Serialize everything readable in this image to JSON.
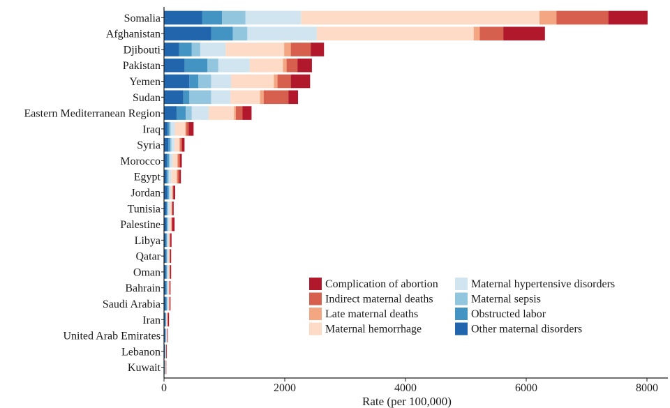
{
  "chart_data": {
    "type": "bar",
    "orientation": "horizontal",
    "stacked": true,
    "xlabel": "Rate (per 100,000)",
    "xlim": [
      0,
      8000
    ],
    "xticks": [
      0,
      2000,
      4000,
      6000,
      8000
    ],
    "legend_placement": "bottom-right",
    "categories": [
      "Somalia",
      "Afghanistan",
      "Djibouti",
      "Pakistan",
      "Yemen",
      "Sudan",
      "Eastern Mediterranean Region",
      "Iraq",
      "Syria",
      "Morocco",
      "Egypt",
      "Jordan",
      "Tunisia",
      "Palestine",
      "Libya",
      "Qatar",
      "Oman",
      "Bahrain",
      "Saudi Arabia",
      "Iran",
      "United Arab Emirates",
      "Lebanon",
      "Kuwait"
    ],
    "series": [
      {
        "name": "Other maternal disorders",
        "color": "#2166ac",
        "values": [
          630,
          780,
          250,
          340,
          420,
          320,
          210,
          60,
          70,
          50,
          40,
          55,
          40,
          40,
          30,
          30,
          30,
          30,
          30,
          20,
          20,
          15,
          10
        ]
      },
      {
        "name": "Obstructed labor",
        "color": "#4393c3",
        "values": [
          330,
          360,
          210,
          380,
          150,
          100,
          150,
          30,
          30,
          30,
          20,
          20,
          15,
          15,
          15,
          15,
          15,
          15,
          15,
          10,
          8,
          5,
          5
        ]
      },
      {
        "name": "Maternal sepsis",
        "color": "#92c5de",
        "values": [
          390,
          240,
          140,
          180,
          210,
          360,
          100,
          20,
          25,
          20,
          20,
          15,
          10,
          10,
          10,
          10,
          10,
          10,
          10,
          5,
          5,
          3,
          3
        ]
      },
      {
        "name": "Maternal hypertensive disorders",
        "color": "#d1e5f0",
        "values": [
          920,
          1150,
          420,
          520,
          330,
          320,
          280,
          70,
          50,
          40,
          40,
          20,
          30,
          25,
          20,
          20,
          20,
          20,
          20,
          10,
          10,
          5,
          5
        ]
      },
      {
        "name": "Maternal hemorrhage",
        "color": "#fddbc7",
        "values": [
          3950,
          2600,
          970,
          550,
          710,
          490,
          420,
          170,
          80,
          80,
          90,
          30,
          30,
          30,
          15,
          15,
          15,
          10,
          10,
          10,
          5,
          5,
          5
        ]
      },
      {
        "name": "Late maternal deaths",
        "color": "#f4a582",
        "values": [
          280,
          100,
          110,
          60,
          60,
          60,
          30,
          20,
          15,
          15,
          15,
          5,
          5,
          5,
          5,
          3,
          3,
          3,
          3,
          3,
          2,
          2,
          2
        ]
      },
      {
        "name": "Indirect maternal deaths",
        "color": "#d6604d",
        "values": [
          860,
          390,
          330,
          180,
          220,
          410,
          110,
          40,
          30,
          30,
          30,
          10,
          10,
          10,
          10,
          10,
          10,
          10,
          10,
          10,
          5,
          5,
          3
        ]
      },
      {
        "name": "Complication of abortion",
        "color": "#b2182b",
        "values": [
          650,
          690,
          220,
          240,
          320,
          160,
          150,
          80,
          40,
          30,
          25,
          30,
          20,
          40,
          20,
          15,
          15,
          10,
          10,
          15,
          8,
          7,
          5
        ]
      }
    ],
    "legend_order": [
      "Complication of abortion",
      "Indirect maternal deaths",
      "Late maternal deaths",
      "Maternal hemorrhage",
      "Maternal hypertensive disorders",
      "Maternal sepsis",
      "Obstructed labor",
      "Other maternal disorders"
    ]
  }
}
